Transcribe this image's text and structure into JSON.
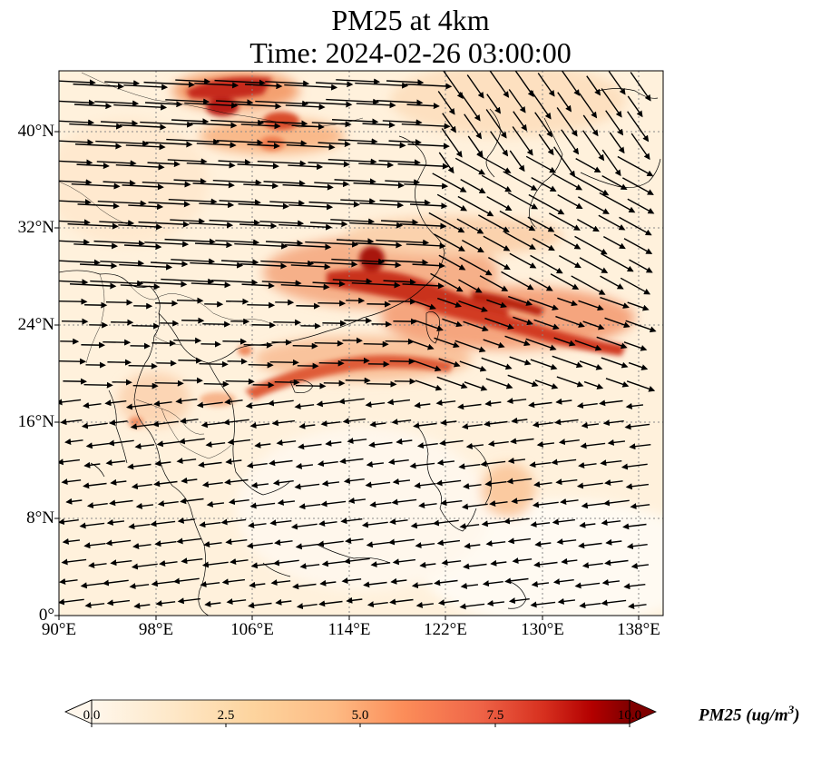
{
  "title": {
    "line1": "PM25 at 4km",
    "line2": "Time: 2024-02-26 03:00:00"
  },
  "map": {
    "extent_lon": [
      90,
      140
    ],
    "extent_lat": [
      0,
      45
    ],
    "lon_ticks": [
      "90°E",
      "98°E",
      "106°E",
      "114°E",
      "122°E",
      "130°E",
      "138°E"
    ],
    "lat_ticks": [
      "0°",
      "8°N",
      "16°N",
      "24°N",
      "32°N",
      "40°N"
    ],
    "colormap": "OrRd",
    "colors": {
      "low": "#fff7ec",
      "mid": "#fdbb84",
      "high": "#d7301f",
      "max": "#7f0000"
    }
  },
  "colorbar": {
    "label": "PM25 (ug/m",
    "label_sup": "3",
    "label_end": ")",
    "ticks": [
      "0.0",
      "2.5",
      "5.0",
      "7.5",
      "10.0"
    ],
    "range": [
      0,
      10
    ],
    "extend": "both"
  }
}
